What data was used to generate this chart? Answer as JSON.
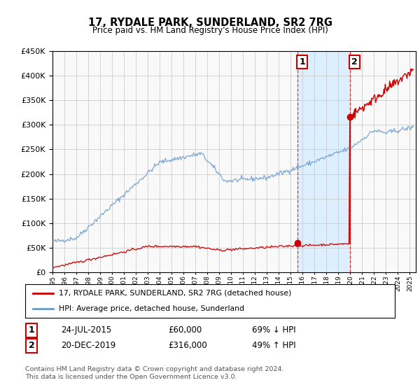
{
  "title": "17, RYDALE PARK, SUNDERLAND, SR2 7RG",
  "subtitle": "Price paid vs. HM Land Registry's House Price Index (HPI)",
  "footer": "Contains HM Land Registry data © Crown copyright and database right 2024.\nThis data is licensed under the Open Government Licence v3.0.",
  "legend_label_red": "17, RYDALE PARK, SUNDERLAND, SR2 7RG (detached house)",
  "legend_label_blue": "HPI: Average price, detached house, Sunderland",
  "transaction1_label": "1",
  "transaction1_date": "24-JUL-2015",
  "transaction1_price": "£60,000",
  "transaction1_hpi": "69% ↓ HPI",
  "transaction2_label": "2",
  "transaction2_date": "20-DEC-2019",
  "transaction2_price": "£316,000",
  "transaction2_hpi": "49% ↑ HPI",
  "ylim": [
    0,
    450000
  ],
  "yticks": [
    0,
    50000,
    100000,
    150000,
    200000,
    250000,
    300000,
    350000,
    400000,
    450000
  ],
  "xlim_start": 1995.0,
  "xlim_end": 2025.5,
  "transaction1_x": 2015.55,
  "transaction1_y": 60000,
  "transaction2_x": 2019.97,
  "transaction2_y": 316000,
  "vline1_x": 2015.55,
  "vline2_x": 2019.97,
  "highlight_x1": 2015.55,
  "highlight_x2": 2019.97,
  "bg_color": "#ffffff",
  "plot_bg_color": "#f9f9f9",
  "grid_color": "#cccccc",
  "red_color": "#cc0000",
  "blue_color": "#6699cc",
  "highlight_color": "#ddeeff"
}
